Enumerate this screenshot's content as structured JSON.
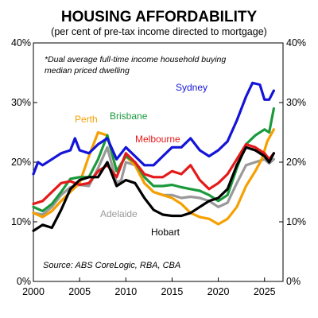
{
  "chart_data": {
    "type": "line",
    "title": "HOUSING AFFORDABILITY",
    "subtitle": "(per cent of pre-tax income directed to mortgage)",
    "note_lines": [
      "*Dual average full-time income household buying",
      "median priced dwelling"
    ],
    "source": "Source: ABS CoreLogic, RBA, CBA",
    "xlabel": "",
    "ylabel": "",
    "xlim": [
      2000,
      2027
    ],
    "ylim": [
      0,
      40
    ],
    "x_ticks": [
      2000,
      2005,
      2010,
      2015,
      2020,
      2025
    ],
    "x_tick_labels": [
      "2000",
      "2005",
      "2010",
      "2015",
      "2020",
      "2025"
    ],
    "y_ticks": [
      0,
      10,
      20,
      30,
      40
    ],
    "y_tick_labels_left": [
      "0%",
      "10%",
      "20%",
      "30%",
      "40%"
    ],
    "y_tick_labels_right": [
      "0%",
      "10%",
      "20%",
      "30%",
      "40%"
    ],
    "grid": false,
    "series": [
      {
        "name": "Adelaide",
        "color": "#999999",
        "points": [
          [
            2000,
            11.5
          ],
          [
            2001,
            11.2
          ],
          [
            2002,
            12.5
          ],
          [
            2003,
            14.5
          ],
          [
            2004,
            15.8
          ],
          [
            2005,
            16.2
          ],
          [
            2006,
            16.0
          ],
          [
            2007,
            19.0
          ],
          [
            2008,
            22.5
          ],
          [
            2009,
            16.5
          ],
          [
            2009.5,
            17.0
          ],
          [
            2010,
            20.0
          ],
          [
            2011,
            19.5
          ],
          [
            2012,
            16.5
          ],
          [
            2013,
            15.0
          ],
          [
            2014,
            14.5
          ],
          [
            2015,
            14.5
          ],
          [
            2016,
            14.0
          ],
          [
            2017,
            14.2
          ],
          [
            2018,
            14.0
          ],
          [
            2019,
            13.5
          ],
          [
            2020,
            12.5
          ],
          [
            2021,
            13.2
          ],
          [
            2022,
            16.5
          ],
          [
            2023,
            19.5
          ],
          [
            2024,
            20.0
          ],
          [
            2025,
            20.5
          ],
          [
            2025.5,
            19.8
          ],
          [
            2026,
            20.5
          ]
        ]
      },
      {
        "name": "Perth",
        "color": "#f5a000",
        "points": [
          [
            2000,
            11.5
          ],
          [
            2001,
            10.8
          ],
          [
            2002,
            11.8
          ],
          [
            2003,
            13.5
          ],
          [
            2004,
            15.0
          ],
          [
            2005,
            16.5
          ],
          [
            2006,
            21.0
          ],
          [
            2007,
            25.0
          ],
          [
            2008,
            24.5
          ],
          [
            2009,
            18.5
          ],
          [
            2010,
            21.0
          ],
          [
            2011,
            19.5
          ],
          [
            2012,
            16.5
          ],
          [
            2013,
            15.0
          ],
          [
            2014,
            14.5
          ],
          [
            2015,
            14.0
          ],
          [
            2016,
            13.0
          ],
          [
            2017,
            11.5
          ],
          [
            2018,
            10.8
          ],
          [
            2019,
            10.5
          ],
          [
            2020,
            9.6
          ],
          [
            2021,
            10.5
          ],
          [
            2022,
            12.5
          ],
          [
            2023,
            16.0
          ],
          [
            2024,
            18.5
          ],
          [
            2024.7,
            20.5
          ],
          [
            2025.3,
            23.5
          ],
          [
            2026,
            25.5
          ]
        ]
      },
      {
        "name": "Brisbane",
        "color": "#1a9a3c",
        "points": [
          [
            2000,
            12.5
          ],
          [
            2001,
            11.8
          ],
          [
            2002,
            13.0
          ],
          [
            2003,
            15.0
          ],
          [
            2004,
            17.2
          ],
          [
            2005,
            17.5
          ],
          [
            2006,
            17.5
          ],
          [
            2007,
            20.5
          ],
          [
            2008,
            24.5
          ],
          [
            2009,
            18.5
          ],
          [
            2010,
            21.0
          ],
          [
            2011,
            20.0
          ],
          [
            2012,
            17.5
          ],
          [
            2013,
            16.0
          ],
          [
            2014,
            16.0
          ],
          [
            2015,
            16.2
          ],
          [
            2016,
            15.8
          ],
          [
            2017,
            15.5
          ],
          [
            2018,
            15.2
          ],
          [
            2019,
            14.5
          ],
          [
            2020,
            13.5
          ],
          [
            2021,
            14.5
          ],
          [
            2022,
            19.0
          ],
          [
            2023,
            23.0
          ],
          [
            2024,
            24.5
          ],
          [
            2025,
            25.5
          ],
          [
            2025.5,
            25.0
          ],
          [
            2026,
            29.0
          ]
        ]
      },
      {
        "name": "Melbourne",
        "color": "#e41a1a",
        "points": [
          [
            2000,
            13.0
          ],
          [
            2001,
            13.5
          ],
          [
            2002,
            15.0
          ],
          [
            2003,
            16.5
          ],
          [
            2004,
            16.8
          ],
          [
            2005,
            16.2
          ],
          [
            2006,
            16.5
          ],
          [
            2007,
            18.5
          ],
          [
            2008,
            19.5
          ],
          [
            2009,
            17.5
          ],
          [
            2010,
            21.5
          ],
          [
            2011,
            20.0
          ],
          [
            2012,
            18.0
          ],
          [
            2013,
            17.5
          ],
          [
            2014,
            17.5
          ],
          [
            2015,
            18.5
          ],
          [
            2016,
            18.0
          ],
          [
            2017,
            19.5
          ],
          [
            2018,
            17.0
          ],
          [
            2019,
            15.5
          ],
          [
            2020,
            16.5
          ],
          [
            2021,
            18.0
          ],
          [
            2022,
            20.5
          ],
          [
            2023,
            23.0
          ],
          [
            2024,
            22.5
          ],
          [
            2025,
            21.5
          ],
          [
            2025.5,
            20.5
          ],
          [
            2026,
            21.5
          ]
        ]
      },
      {
        "name": "Sydney",
        "color": "#1414d8",
        "points": [
          [
            2000,
            18.0
          ],
          [
            2000.5,
            20.0
          ],
          [
            2001,
            19.5
          ],
          [
            2002,
            20.5
          ],
          [
            2003,
            21.5
          ],
          [
            2004,
            22.0
          ],
          [
            2004.5,
            24.0
          ],
          [
            2005,
            22.0
          ],
          [
            2006,
            21.5
          ],
          [
            2007,
            23.0
          ],
          [
            2008,
            24.0
          ],
          [
            2009,
            20.5
          ],
          [
            2010,
            22.5
          ],
          [
            2011,
            21.0
          ],
          [
            2012,
            19.5
          ],
          [
            2013,
            19.5
          ],
          [
            2014,
            21.0
          ],
          [
            2015,
            22.5
          ],
          [
            2016,
            22.5
          ],
          [
            2017,
            24.0
          ],
          [
            2018,
            22.0
          ],
          [
            2019,
            21.0
          ],
          [
            2020,
            22.0
          ],
          [
            2021,
            23.5
          ],
          [
            2022,
            27.0
          ],
          [
            2023,
            31.0
          ],
          [
            2023.7,
            33.3
          ],
          [
            2024.5,
            33.0
          ],
          [
            2025,
            30.5
          ],
          [
            2025.5,
            30.5
          ],
          [
            2026,
            32.0
          ]
        ]
      },
      {
        "name": "Hobart",
        "color": "#000000",
        "points": [
          [
            2000,
            8.5
          ],
          [
            2001,
            9.5
          ],
          [
            2002,
            9.0
          ],
          [
            2003,
            12.0
          ],
          [
            2004,
            15.5
          ],
          [
            2005,
            17.0
          ],
          [
            2006,
            17.5
          ],
          [
            2007,
            17.5
          ],
          [
            2008,
            20.0
          ],
          [
            2009,
            16.0
          ],
          [
            2010,
            17.0
          ],
          [
            2011,
            16.5
          ],
          [
            2012,
            14.0
          ],
          [
            2013,
            12.0
          ],
          [
            2014,
            11.2
          ],
          [
            2015,
            11.0
          ],
          [
            2016,
            11.0
          ],
          [
            2017,
            11.5
          ],
          [
            2018,
            12.5
          ],
          [
            2019,
            13.5
          ],
          [
            2020,
            14.0
          ],
          [
            2021,
            15.5
          ],
          [
            2022,
            19.5
          ],
          [
            2023,
            22.5
          ],
          [
            2024,
            22.0
          ],
          [
            2025,
            21.0
          ],
          [
            2025.5,
            20.0
          ],
          [
            2026,
            21.5
          ]
        ]
      }
    ]
  }
}
